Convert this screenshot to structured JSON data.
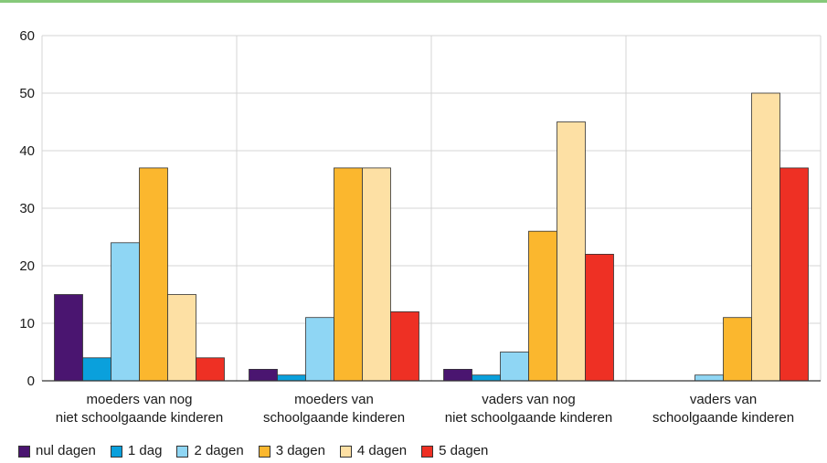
{
  "chart_data": {
    "type": "bar",
    "title": "",
    "xlabel": "",
    "ylabel": "",
    "ylim": [
      0,
      60
    ],
    "yticks": [
      0,
      10,
      20,
      30,
      40,
      50,
      60
    ],
    "grid": true,
    "legend_position": "bottom-left",
    "categories": [
      [
        "moeders van nog",
        "niet schoolgaande kinderen"
      ],
      [
        "moeders van",
        "schoolgaande kinderen"
      ],
      [
        "vaders van nog",
        "niet schoolgaande kinderen"
      ],
      [
        "vaders van",
        "schoolgaande kinderen"
      ]
    ],
    "series": [
      {
        "name": "nul dagen",
        "color": "#4a1570",
        "values": [
          15,
          2,
          2,
          0
        ]
      },
      {
        "name": "1 dag",
        "color": "#0aa0dc",
        "values": [
          4,
          1,
          1,
          0
        ]
      },
      {
        "name": "2 dagen",
        "color": "#8fd6f4",
        "values": [
          24,
          11,
          5,
          1
        ]
      },
      {
        "name": "3 dagen",
        "color": "#fbb72e",
        "values": [
          37,
          37,
          26,
          11
        ]
      },
      {
        "name": "4 dagen",
        "color": "#fde0a4",
        "values": [
          15,
          37,
          45,
          50
        ]
      },
      {
        "name": "5 dagen",
        "color": "#ee3024",
        "values": [
          4,
          12,
          22,
          37
        ]
      }
    ]
  }
}
